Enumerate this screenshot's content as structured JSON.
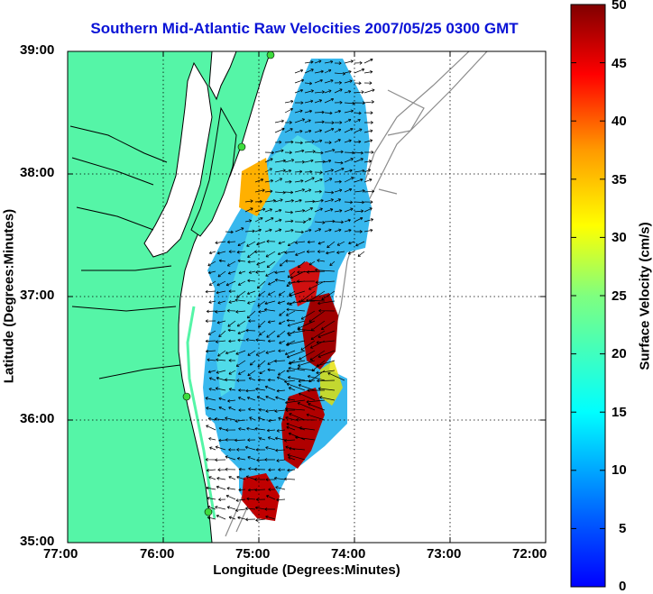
{
  "title": "Southern Mid-Atlantic Raw Velocities 2007/05/25 0300 GMT",
  "axes": {
    "xlabel": "Longitude (Degrees:Minutes)",
    "ylabel": "Latitude (Degrees:Minutes)",
    "xticks": [
      "77:00",
      "76:00",
      "75:00",
      "74:00",
      "73:00",
      "72:00"
    ],
    "yticks": [
      "39:00",
      "38:00",
      "37:00",
      "36:00",
      "35:00"
    ]
  },
  "colorbar": {
    "label": "Surface Velocity (cm/s)",
    "ticks": [
      "50",
      "45",
      "40",
      "35",
      "30",
      "25",
      "20",
      "15",
      "10",
      "5",
      "0"
    ]
  },
  "colors": {
    "land": "#55f5a7",
    "water_outline": "#000000",
    "bathymetry": "#8c8c8c",
    "title": "#0a13d6",
    "station": "#3ddc3d"
  }
}
